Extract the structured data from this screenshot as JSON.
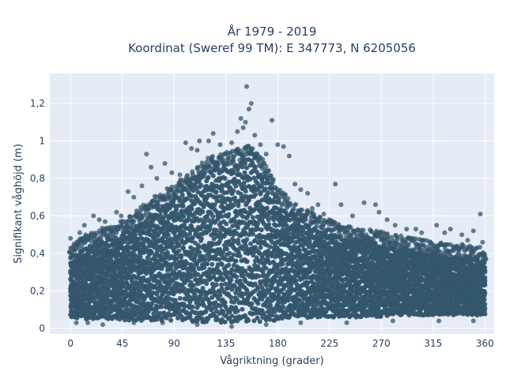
{
  "chart_data": {
    "type": "scatter",
    "title_line1": "År 1979 - 2019",
    "title_line2": "Koordinat (Sweref 99 TM): E 347773, N 6205056",
    "xlabel": "Vågriktning (grader)",
    "ylabel": "Signifikant våghöjd (m)",
    "xlim": [
      -18,
      368
    ],
    "ylim": [
      -0.03,
      1.36
    ],
    "x_ticks": [
      0,
      45,
      90,
      135,
      180,
      225,
      270,
      315,
      360
    ],
    "x_tick_labels": [
      "0",
      "45",
      "90",
      "135",
      "180",
      "225",
      "270",
      "315",
      "360"
    ],
    "y_ticks": [
      0,
      0.2,
      0.4,
      0.6,
      0.8,
      1.0,
      1.2
    ],
    "y_tick_labels": [
      "0",
      "0,2",
      "0,4",
      "0,6",
      "0,8",
      "1",
      "1,2"
    ],
    "grid": true,
    "marker_color": "#34566b",
    "plot_background": "#e5ecf6",
    "series": [
      {
        "envelope": {
          "x": [
            0,
            10,
            20,
            30,
            40,
            50,
            60,
            70,
            80,
            90,
            100,
            110,
            120,
            130,
            140,
            150,
            155,
            160,
            170,
            180,
            190,
            200,
            210,
            220,
            230,
            240,
            250,
            260,
            270,
            280,
            290,
            300,
            310,
            320,
            330,
            340,
            350,
            360
          ],
          "upper": [
            0.38,
            0.42,
            0.45,
            0.47,
            0.49,
            0.52,
            0.57,
            0.62,
            0.66,
            0.7,
            0.75,
            0.8,
            0.84,
            0.86,
            0.88,
            0.9,
            0.91,
            0.89,
            0.8,
            0.68,
            0.62,
            0.58,
            0.55,
            0.52,
            0.5,
            0.48,
            0.47,
            0.46,
            0.45,
            0.43,
            0.42,
            0.41,
            0.4,
            0.39,
            0.38,
            0.38,
            0.37,
            0.36
          ],
          "lower": [
            0.06,
            0.05,
            0.05,
            0.05,
            0.05,
            0.04,
            0.04,
            0.04,
            0.04,
            0.04,
            0.04,
            0.03,
            0.03,
            0.03,
            0.03,
            0.03,
            0.03,
            0.03,
            0.04,
            0.04,
            0.05,
            0.05,
            0.05,
            0.06,
            0.06,
            0.06,
            0.06,
            0.06,
            0.06,
            0.07,
            0.07,
            0.07,
            0.07,
            0.07,
            0.07,
            0.07,
            0.07,
            0.07
          ]
        },
        "outliers": [
          [
            0,
            0.48
          ],
          [
            3,
            0.45
          ],
          [
            8,
            0.51
          ],
          [
            12,
            0.55
          ],
          [
            20,
            0.6
          ],
          [
            25,
            0.58
          ],
          [
            30,
            0.57
          ],
          [
            35,
            0.54
          ],
          [
            40,
            0.62
          ],
          [
            44,
            0.6
          ],
          [
            50,
            0.73
          ],
          [
            55,
            0.7
          ],
          [
            62,
            0.76
          ],
          [
            66,
            0.93
          ],
          [
            70,
            0.86
          ],
          [
            75,
            0.8
          ],
          [
            82,
            0.88
          ],
          [
            88,
            0.83
          ],
          [
            95,
            0.82
          ],
          [
            100,
            0.99
          ],
          [
            105,
            0.96
          ],
          [
            110,
            0.95
          ],
          [
            112,
            1.0
          ],
          [
            120,
            1.0
          ],
          [
            124,
            1.04
          ],
          [
            130,
            0.98
          ],
          [
            140,
            0.99
          ],
          [
            145,
            1.05
          ],
          [
            148,
            1.12
          ],
          [
            150,
            1.07
          ],
          [
            152,
            1.1
          ],
          [
            153,
            1.29
          ],
          [
            155,
            1.17
          ],
          [
            157,
            1.2
          ],
          [
            160,
            1.03
          ],
          [
            165,
            0.98
          ],
          [
            170,
            0.93
          ],
          [
            175,
            1.11
          ],
          [
            180,
            0.98
          ],
          [
            185,
            0.97
          ],
          [
            190,
            0.92
          ],
          [
            195,
            0.77
          ],
          [
            200,
            0.74
          ],
          [
            206,
            0.72
          ],
          [
            210,
            0.64
          ],
          [
            215,
            0.66
          ],
          [
            220,
            0.61
          ],
          [
            230,
            0.77
          ],
          [
            235,
            0.66
          ],
          [
            245,
            0.6
          ],
          [
            255,
            0.67
          ],
          [
            265,
            0.66
          ],
          [
            268,
            0.62
          ],
          [
            275,
            0.58
          ],
          [
            282,
            0.55
          ],
          [
            292,
            0.53
          ],
          [
            300,
            0.53
          ],
          [
            305,
            0.51
          ],
          [
            318,
            0.55
          ],
          [
            325,
            0.51
          ],
          [
            330,
            0.53
          ],
          [
            340,
            0.5
          ],
          [
            345,
            0.47
          ],
          [
            350,
            0.52
          ],
          [
            356,
            0.61
          ],
          [
            358,
            0.46
          ]
        ],
        "low_outliers": [
          [
            5,
            0.03
          ],
          [
            15,
            0.03
          ],
          [
            28,
            0.02
          ],
          [
            55,
            0.03
          ],
          [
            80,
            0.03
          ],
          [
            110,
            0.02
          ],
          [
            140,
            0.01
          ],
          [
            170,
            0.02
          ],
          [
            200,
            0.03
          ],
          [
            240,
            0.03
          ],
          [
            280,
            0.04
          ],
          [
            320,
            0.04
          ],
          [
            350,
            0.04
          ]
        ]
      }
    ]
  }
}
